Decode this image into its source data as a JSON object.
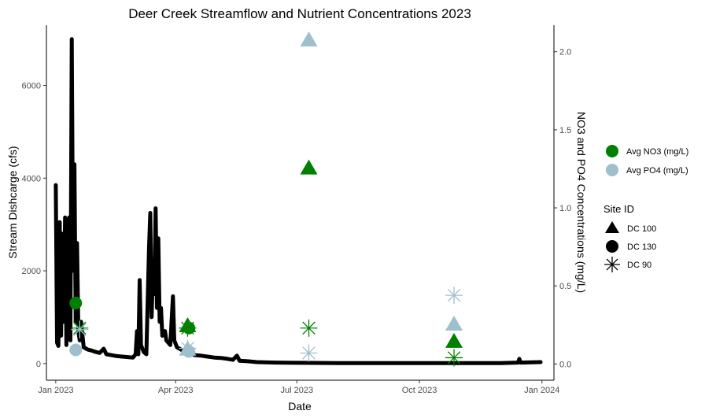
{
  "chart_data": {
    "type": "line",
    "title": "Deer Creek Streamflow and Nutrient Concentrations 2023",
    "xlabel": "Date",
    "ylabel": "Stream Dishcarge (cfs)",
    "y2label": "NO3 and PO4 Concentrations (mg/L)",
    "x_ticks": [
      "Jan 2023",
      "Apr 2023",
      "Jul 2023",
      "Oct 2023",
      "Jan 2024"
    ],
    "y_ticks": [
      "0",
      "2000",
      "4000",
      "6000"
    ],
    "y2_ticks": [
      "0.0",
      "0.5",
      "1.0",
      "1.5",
      "2.0"
    ],
    "xlim": [
      "2022-12-25",
      "2024-01-10"
    ],
    "ylim": [
      -360,
      7300
    ],
    "y2lim": [
      -0.104,
      2.17
    ],
    "grid": false,
    "legend_placement": "right",
    "color_legend": [
      {
        "label": "Avg NO3 (mg/L)",
        "color": "#008000"
      },
      {
        "label": "Avg PO4 (mg/L)",
        "color": "#9fbfcc"
      }
    ],
    "shape_legend_title": "Site ID",
    "shape_legend": [
      {
        "label": "DC 100",
        "shape": "triangle"
      },
      {
        "label": "DC 130",
        "shape": "circle"
      },
      {
        "label": "DC 90",
        "shape": "asterisk"
      }
    ],
    "discharge": {
      "color": "#000000",
      "points": [
        [
          "2023-01-01",
          3850
        ],
        [
          "2023-01-02",
          450
        ],
        [
          "2023-01-03",
          380
        ],
        [
          "2023-01-04",
          3050
        ],
        [
          "2023-01-05",
          600
        ],
        [
          "2023-01-06",
          2800
        ],
        [
          "2023-01-07",
          900
        ],
        [
          "2023-01-08",
          3150
        ],
        [
          "2023-01-09",
          400
        ],
        [
          "2023-01-10",
          2500
        ],
        [
          "2023-01-11",
          3150
        ],
        [
          "2023-01-12",
          500
        ],
        [
          "2023-01-13",
          7000
        ],
        [
          "2023-01-14",
          2000
        ],
        [
          "2023-01-15",
          4300
        ],
        [
          "2023-01-16",
          900
        ],
        [
          "2023-01-17",
          2600
        ],
        [
          "2023-01-18",
          700
        ],
        [
          "2023-01-19",
          500
        ],
        [
          "2023-01-20",
          900
        ],
        [
          "2023-01-22",
          350
        ],
        [
          "2023-01-25",
          300
        ],
        [
          "2023-01-28",
          280
        ],
        [
          "2023-01-31",
          250
        ],
        [
          "2023-02-03",
          230
        ],
        [
          "2023-02-06",
          320
        ],
        [
          "2023-02-08",
          200
        ],
        [
          "2023-02-12",
          180
        ],
        [
          "2023-02-16",
          160
        ],
        [
          "2023-02-20",
          150
        ],
        [
          "2023-02-24",
          140
        ],
        [
          "2023-02-28",
          130
        ],
        [
          "2023-03-02",
          200
        ],
        [
          "2023-03-03",
          700
        ],
        [
          "2023-03-04",
          200
        ],
        [
          "2023-03-05",
          1800
        ],
        [
          "2023-03-06",
          400
        ],
        [
          "2023-03-08",
          250
        ],
        [
          "2023-03-10",
          200
        ],
        [
          "2023-03-12",
          2500
        ],
        [
          "2023-03-13",
          3250
        ],
        [
          "2023-03-14",
          1000
        ],
        [
          "2023-03-15",
          2000
        ],
        [
          "2023-03-16",
          1500
        ],
        [
          "2023-03-17",
          3350
        ],
        [
          "2023-03-18",
          1200
        ],
        [
          "2023-03-19",
          2700
        ],
        [
          "2023-03-20",
          900
        ],
        [
          "2023-03-21",
          1200
        ],
        [
          "2023-03-22",
          600
        ],
        [
          "2023-03-24",
          700
        ],
        [
          "2023-03-25",
          500
        ],
        [
          "2023-03-28",
          400
        ],
        [
          "2023-03-30",
          1450
        ],
        [
          "2023-03-31",
          500
        ],
        [
          "2023-04-02",
          350
        ],
        [
          "2023-04-05",
          300
        ],
        [
          "2023-04-08",
          250
        ],
        [
          "2023-04-12",
          200
        ],
        [
          "2023-04-16",
          180
        ],
        [
          "2023-04-20",
          170
        ],
        [
          "2023-04-25",
          150
        ],
        [
          "2023-04-30",
          130
        ],
        [
          "2023-05-05",
          120
        ],
        [
          "2023-05-10",
          100
        ],
        [
          "2023-05-14",
          80
        ],
        [
          "2023-05-17",
          170
        ],
        [
          "2023-05-19",
          60
        ],
        [
          "2023-05-25",
          50
        ],
        [
          "2023-06-01",
          30
        ],
        [
          "2023-06-15",
          20
        ],
        [
          "2023-07-01",
          15
        ],
        [
          "2023-08-01",
          10
        ],
        [
          "2023-09-01",
          10
        ],
        [
          "2023-10-01",
          10
        ],
        [
          "2023-11-01",
          10
        ],
        [
          "2023-12-01",
          10
        ],
        [
          "2023-12-14",
          20
        ],
        [
          "2023-12-15",
          100
        ],
        [
          "2023-12-16",
          20
        ],
        [
          "2023-12-31",
          30
        ]
      ]
    },
    "nutrient_points": [
      {
        "date": "2023-01-16",
        "value": 0.39,
        "nutrient": "Avg NO3 (mg/L)",
        "site": "DC 130"
      },
      {
        "date": "2023-01-16",
        "value": 0.09,
        "nutrient": "Avg PO4 (mg/L)",
        "site": "DC 130"
      },
      {
        "date": "2023-01-19",
        "value": 0.23,
        "nutrient": "Avg NO3 (mg/L)",
        "site": "DC 90"
      },
      {
        "date": "2023-01-19",
        "value": 0.22,
        "nutrient": "Avg PO4 (mg/L)",
        "site": "DC 90"
      },
      {
        "date": "2023-04-10",
        "value": 0.24,
        "nutrient": "Avg NO3 (mg/L)",
        "site": "DC 100"
      },
      {
        "date": "2023-04-10",
        "value": 0.09,
        "nutrient": "Avg PO4 (mg/L)",
        "site": "DC 100"
      },
      {
        "date": "2023-04-11",
        "value": 0.23,
        "nutrient": "Avg NO3 (mg/L)",
        "site": "DC 130"
      },
      {
        "date": "2023-04-11",
        "value": 0.08,
        "nutrient": "Avg PO4 (mg/L)",
        "site": "DC 130"
      },
      {
        "date": "2023-04-10",
        "value": 0.23,
        "nutrient": "Avg NO3 (mg/L)",
        "site": "DC 90"
      },
      {
        "date": "2023-04-10",
        "value": 0.1,
        "nutrient": "Avg PO4 (mg/L)",
        "site": "DC 90"
      },
      {
        "date": "2023-07-10",
        "value": 2.07,
        "nutrient": "Avg PO4 (mg/L)",
        "site": "DC 100"
      },
      {
        "date": "2023-07-10",
        "value": 1.25,
        "nutrient": "Avg NO3 (mg/L)",
        "site": "DC 100"
      },
      {
        "date": "2023-07-10",
        "value": 0.23,
        "nutrient": "Avg NO3 (mg/L)",
        "site": "DC 90"
      },
      {
        "date": "2023-07-10",
        "value": 0.07,
        "nutrient": "Avg PO4 (mg/L)",
        "site": "DC 90"
      },
      {
        "date": "2023-10-27",
        "value": 0.25,
        "nutrient": "Avg PO4 (mg/L)",
        "site": "DC 100"
      },
      {
        "date": "2023-10-27",
        "value": 0.14,
        "nutrient": "Avg NO3 (mg/L)",
        "site": "DC 100"
      },
      {
        "date": "2023-10-27",
        "value": 0.44,
        "nutrient": "Avg PO4 (mg/L)",
        "site": "DC 90"
      },
      {
        "date": "2023-10-27",
        "value": 0.04,
        "nutrient": "Avg NO3 (mg/L)",
        "site": "DC 90"
      }
    ]
  }
}
